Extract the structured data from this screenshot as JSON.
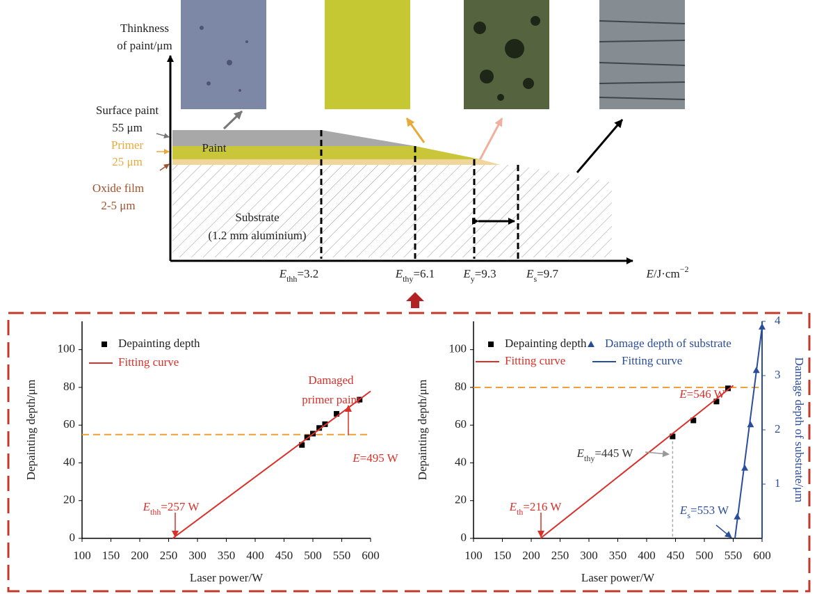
{
  "diagram": {
    "y_label": [
      "Thinkness",
      "of paint/μm"
    ],
    "layers": [
      {
        "name": "Surface paint",
        "thickness": "55 μm"
      },
      {
        "name": "Primer",
        "thickness": "25 μm"
      },
      {
        "name": "Oxide film",
        "thickness": "2-5 μm"
      }
    ],
    "paint_label": "Paint",
    "substrate_label": [
      "Substrate",
      "(1.2 mm aluminium)"
    ],
    "x_labels": [
      {
        "italic": "E",
        "sub": "thh",
        "text": "=3.2"
      },
      {
        "italic": "E",
        "sub": "thy",
        "text": "=6.1"
      },
      {
        "italic": "E",
        "sub": "y",
        "text": "=9.3"
      },
      {
        "italic": "E",
        "sub": "s",
        "text": "=9.7"
      }
    ],
    "x_axis_label": {
      "italic": "E",
      "text": "/J·cm",
      "sup": "−2"
    }
  },
  "chart_data": [
    {
      "type": "scatter",
      "x_label": "Laser power/W",
      "y_label": "Depainting depth/μm",
      "xlim": [
        100,
        600
      ],
      "xticks": [
        100,
        150,
        200,
        250,
        300,
        350,
        400,
        450,
        500,
        550,
        600
      ],
      "ylim": [
        0,
        115
      ],
      "yticks": [
        0,
        20,
        40,
        60,
        80,
        100
      ],
      "series": [
        {
          "name": "Depainting depth",
          "color": "#000000",
          "style": "square",
          "x": [
            481,
            490,
            500,
            511,
            521,
            541,
            581
          ],
          "values": [
            49.5,
            53.5,
            55.5,
            58.5,
            60.5,
            66,
            73.5
          ]
        },
        {
          "name": "Fitting curve",
          "color": "#d9302a",
          "style": "line",
          "x": [
            257,
            600
          ],
          "values": [
            0,
            78
          ]
        }
      ],
      "reference_lines": [
        {
          "y": 55,
          "color": "#f0a030"
        }
      ],
      "annotations": [
        {
          "text": "Damaged"
        },
        {
          "text": "primer paint"
        },
        {
          "italic": "E",
          "text": "=495 W"
        },
        {
          "italic": "E",
          "sub": "thh",
          "text": "=257 W"
        }
      ]
    },
    {
      "type": "scatter",
      "x_label": "Laser power/W",
      "y_label": "Depainting depth/μm",
      "y2_label": "Damage depth of substrate/μm",
      "xlim": [
        100,
        600
      ],
      "xticks": [
        100,
        150,
        200,
        250,
        300,
        350,
        400,
        450,
        500,
        550,
        600
      ],
      "ylim": [
        0,
        115
      ],
      "yticks": [
        0,
        20,
        40,
        60,
        80,
        100
      ],
      "y2lim": [
        0,
        4
      ],
      "y2ticks": [
        1,
        2,
        3,
        4
      ],
      "series": [
        {
          "name": "Depainting depth",
          "color": "#000000",
          "style": "square",
          "x": [
            445,
            481,
            521,
            541
          ],
          "values": [
            54,
            62.5,
            72.5,
            79.5
          ]
        },
        {
          "name": "Fitting curve",
          "color": "#d9302a",
          "style": "line",
          "x": [
            216,
            550
          ],
          "values": [
            0,
            81
          ]
        },
        {
          "name": "Damage depth of substrate",
          "color": "#2a4d9a",
          "style": "triangle",
          "axis": "y2",
          "x": [
            557,
            570,
            580,
            590,
            600
          ],
          "values": [
            0.4,
            1.3,
            2.1,
            3.1,
            3.9
          ]
        },
        {
          "name": "Fitting curve",
          "color": "#2a4d9a",
          "style": "line",
          "axis": "y2",
          "x": [
            553,
            600
          ],
          "values": [
            0,
            3.9
          ]
        }
      ],
      "reference_lines": [
        {
          "y": 80,
          "color": "#f0a030"
        }
      ],
      "guides": [
        {
          "x": 445,
          "y": 54,
          "color": "#aaaaaa"
        }
      ],
      "annotations": [
        {
          "italic": "E",
          "text": "=546 W"
        },
        {
          "italic": "E",
          "sub": "thy",
          "text": "=445 W"
        },
        {
          "italic": "E",
          "sub": "th",
          "text": "=216 W"
        },
        {
          "italic": "E",
          "sub": "s",
          "text": "=553 W"
        }
      ]
    }
  ]
}
